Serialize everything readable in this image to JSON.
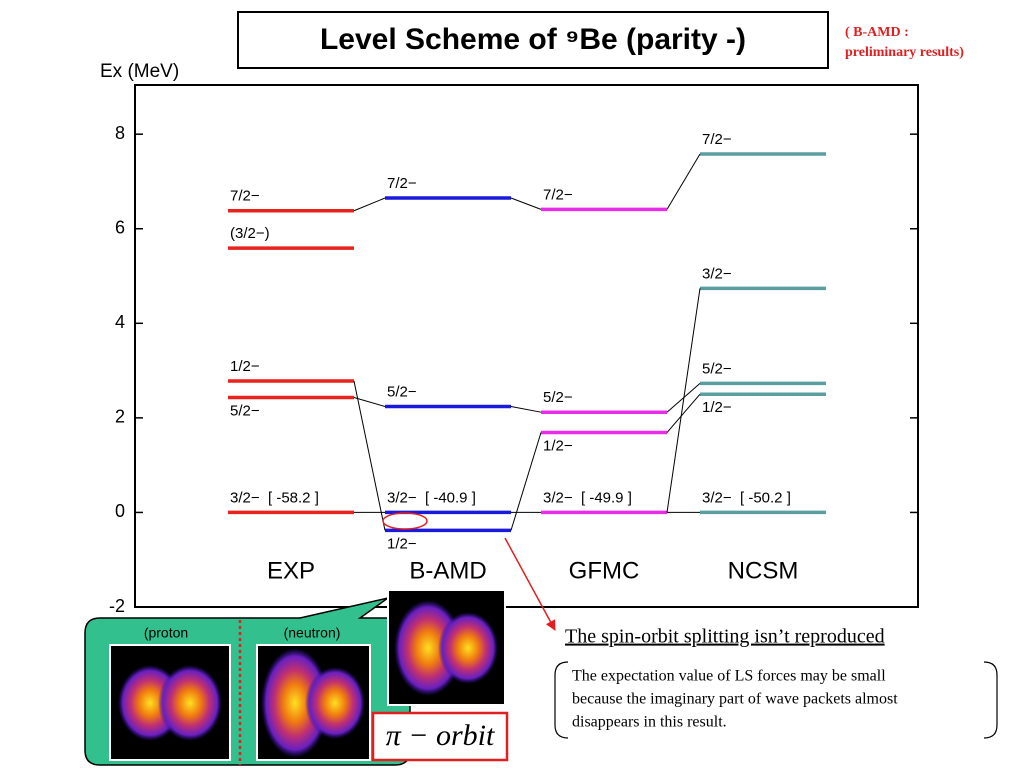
{
  "title": "Level Scheme of ⁹Be (parity -)",
  "note": [
    "( B-AMD :",
    "preliminary results)"
  ],
  "chart_data": {
    "type": "level",
    "ylabel": "Ex (MeV)",
    "ylim": [
      -2,
      9.04
    ],
    "yticks": [
      -2,
      0,
      2,
      4,
      6,
      8
    ],
    "columns": [
      {
        "name": "EXP",
        "color": "#e8221c",
        "levels": [
          {
            "label": "3/2−",
            "value": 0,
            "binding": "[ -58.2 ]"
          },
          {
            "label": "5/2−",
            "value": 2.43
          },
          {
            "label": "1/2−",
            "value": 2.78
          },
          {
            "label": "(3/2−)",
            "value": 5.59
          },
          {
            "label": "7/2−",
            "value": 6.38
          }
        ]
      },
      {
        "name": "B-AMD",
        "color": "#1a1adc",
        "levels": [
          {
            "label": "1/2−",
            "value": -0.38
          },
          {
            "label": "3/2−",
            "value": 0,
            "binding": "[ -40.9 ]"
          },
          {
            "label": "5/2−",
            "value": 2.24
          },
          {
            "label": "7/2−",
            "value": 6.65
          }
        ]
      },
      {
        "name": "GFMC",
        "color": "#e82ce8",
        "levels": [
          {
            "label": "3/2−",
            "value": 0,
            "binding": "[ -49.9 ]"
          },
          {
            "label": "1/2−",
            "value": 1.69
          },
          {
            "label": "5/2−",
            "value": 2.12
          },
          {
            "label": "7/2−",
            "value": 6.41
          }
        ]
      },
      {
        "name": "NCSM",
        "color": "#5a9ea0",
        "levels": [
          {
            "label": "3/2−",
            "value": 0,
            "binding": "[ -50.2 ]"
          },
          {
            "label": "1/2−",
            "value": 2.5
          },
          {
            "label": "5/2−",
            "value": 2.73
          },
          {
            "label": "3/2−",
            "value": 4.74
          },
          {
            "label": "7/2−",
            "value": 7.58
          }
        ]
      }
    ]
  },
  "densities": {
    "proton": "(proton",
    "neutron": "(neutron)",
    "orbit": "π − orbit"
  },
  "comment": {
    "heading": "The spin-orbit splitting isn’t reproduced",
    "lines": [
      "The expectation value of LS forces may be small",
      "because the imaginary part of wave packets almost",
      "disappears in this result."
    ]
  }
}
